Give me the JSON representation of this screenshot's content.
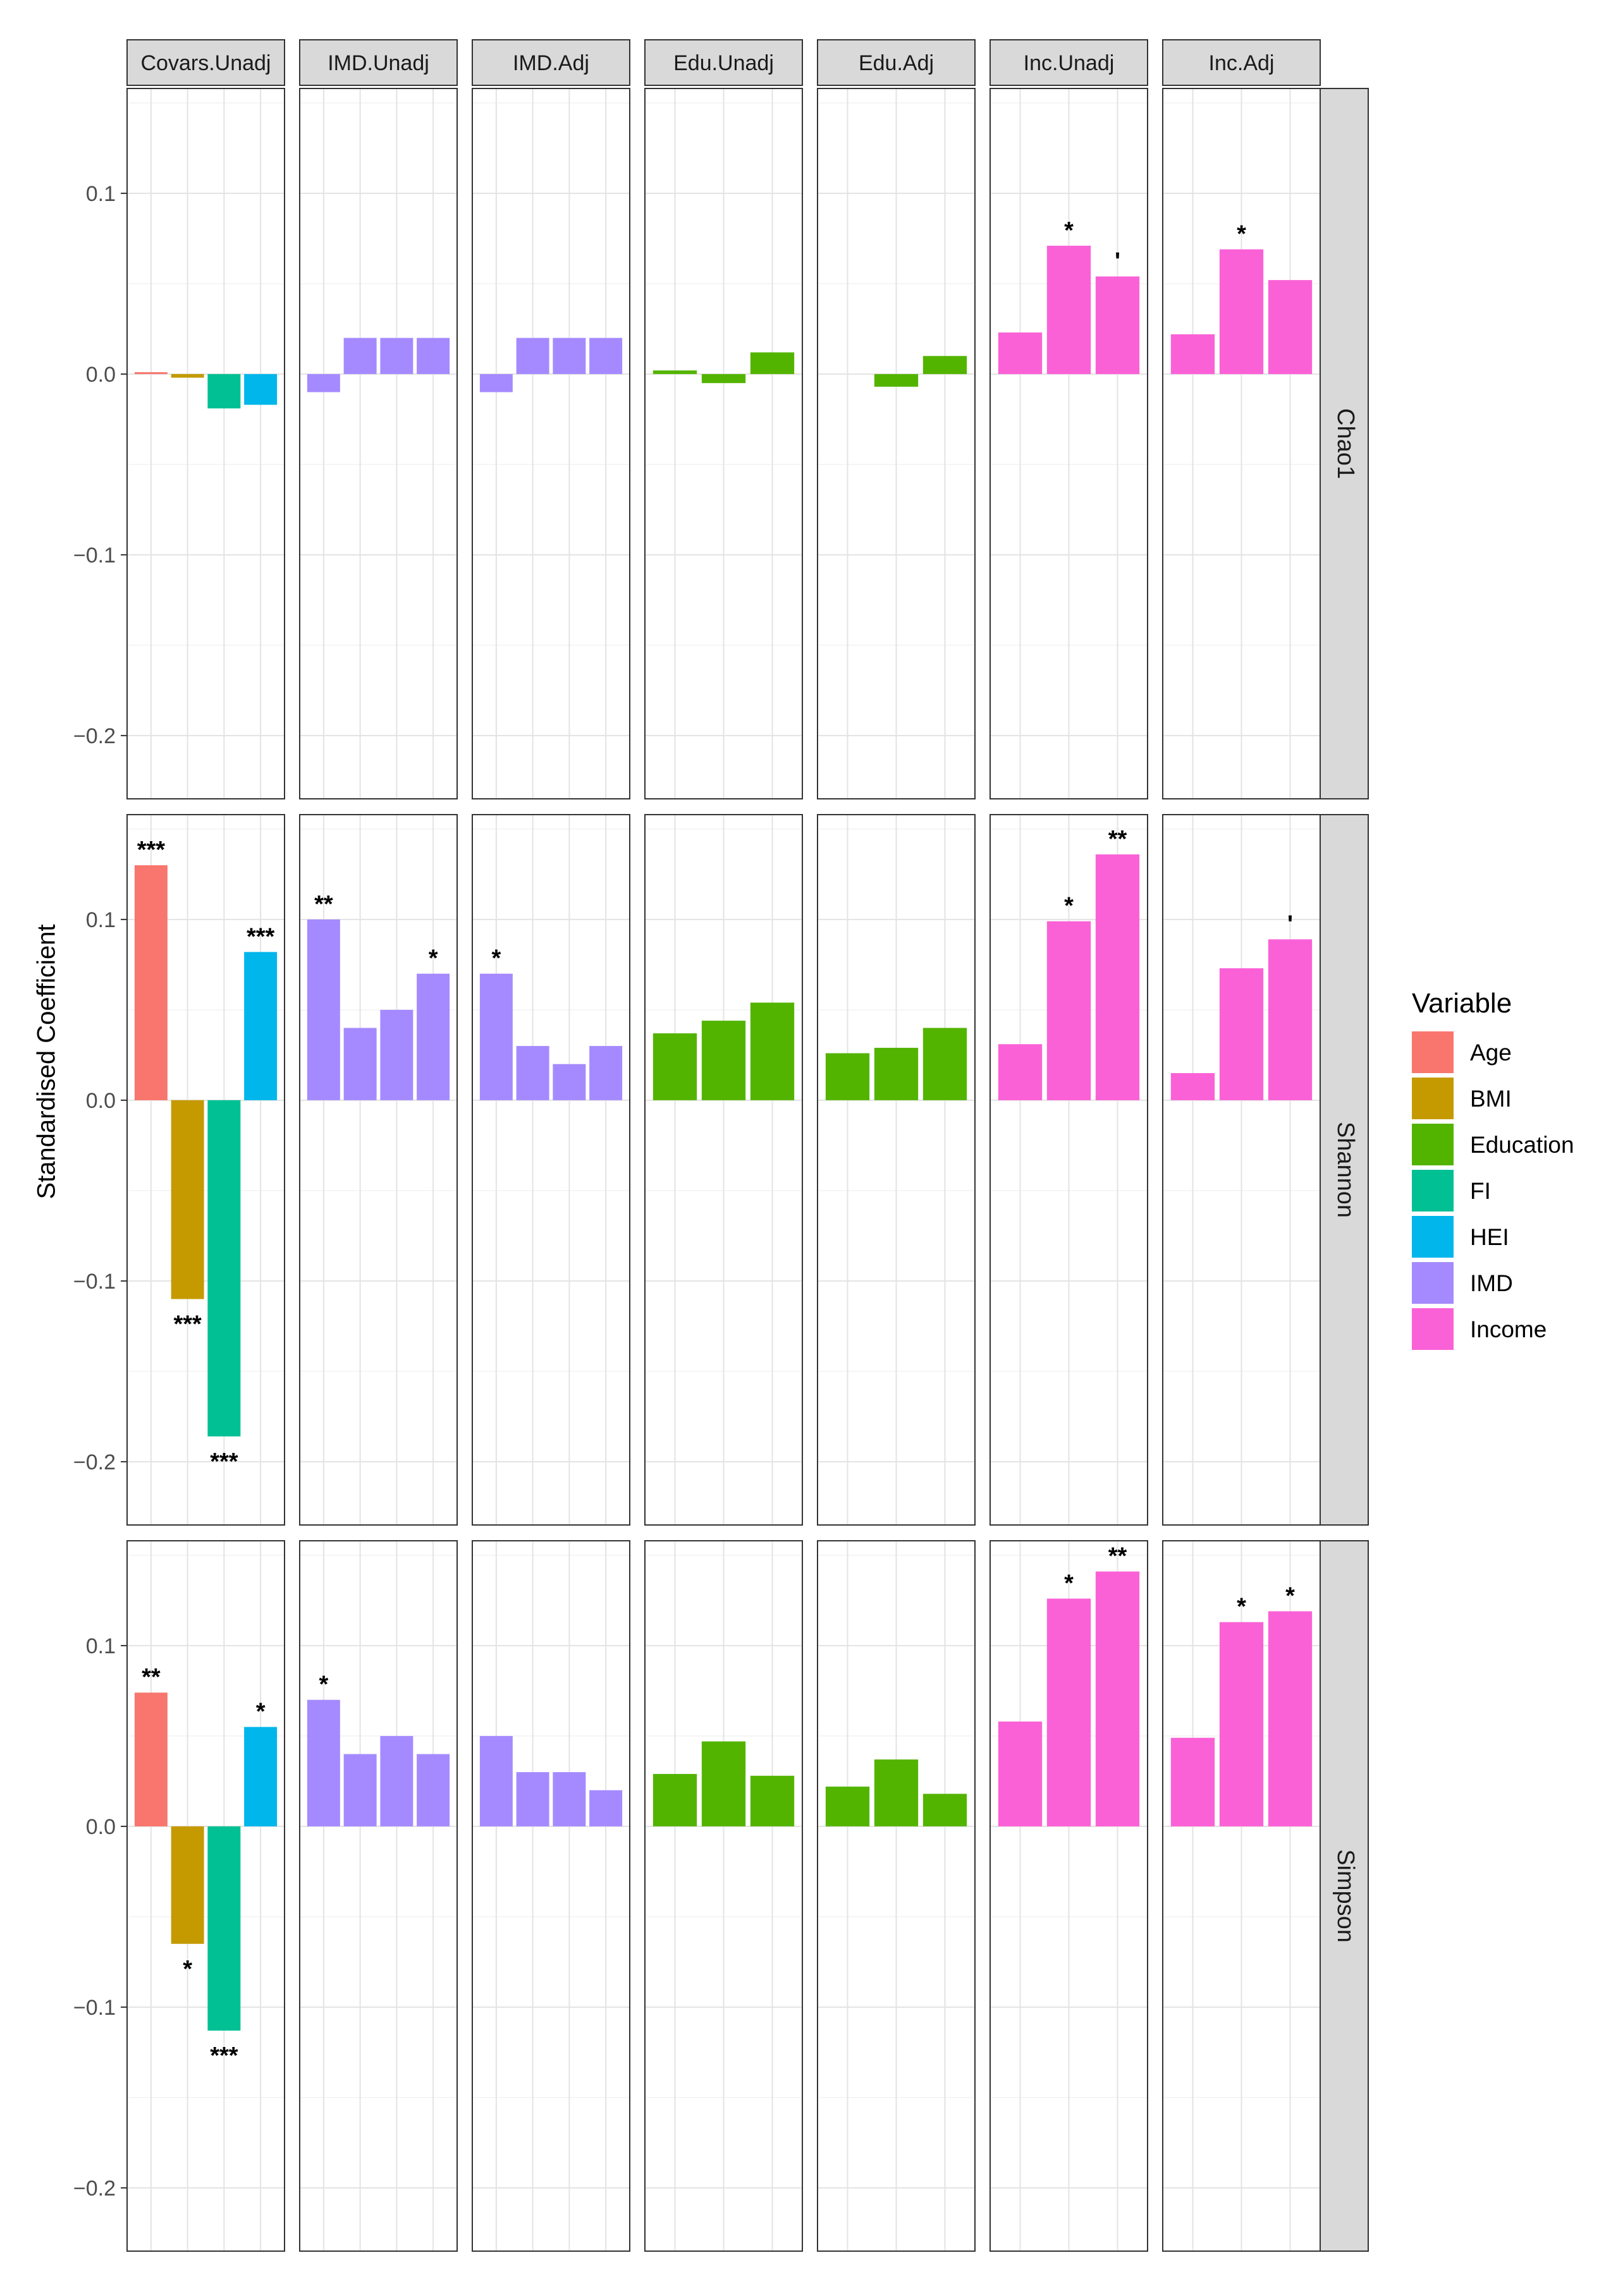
{
  "chart_data": {
    "type": "bar",
    "ylabel": "Standardised Coefficient",
    "xlabel": "",
    "ylim": [
      -0.235,
      0.158
    ],
    "yticks": [
      0.1,
      0.0,
      -0.1,
      -0.2
    ],
    "ytick_labels": [
      "0.1",
      "0.0",
      "−0.1",
      "−0.2"
    ],
    "grid": true,
    "legend_position": "right",
    "columns": [
      "Covars.Unadj",
      "IMD.Unadj",
      "IMD.Adj",
      "Edu.Unadj",
      "Edu.Adj",
      "Inc.Unadj",
      "Inc.Adj"
    ],
    "rows": [
      "Chao1",
      "Shannon",
      "Simpson"
    ],
    "legend": {
      "title": "Variable",
      "items": [
        {
          "name": "Age",
          "color": "#F8766D"
        },
        {
          "name": "BMI",
          "color": "#C49A00"
        },
        {
          "name": "Education",
          "color": "#53B400"
        },
        {
          "name": "FI",
          "color": "#00C094"
        },
        {
          "name": "HEI",
          "color": "#00B6EB"
        },
        {
          "name": "IMD",
          "color": "#A58AFF"
        },
        {
          "name": "Income",
          "color": "#FB61D7"
        }
      ]
    },
    "panels": [
      [
        {
          "variables": [
            "Age",
            "BMI",
            "FI",
            "HEI"
          ],
          "values": [
            0.0005,
            -0.002,
            -0.019,
            -0.017
          ],
          "sig": [
            "",
            "",
            "",
            ""
          ]
        },
        {
          "variables": [
            "IMD",
            "IMD",
            "IMD",
            "IMD"
          ],
          "values": [
            -0.01,
            0.02,
            0.02,
            0.02
          ],
          "sig": [
            "",
            "",
            "",
            ""
          ]
        },
        {
          "variables": [
            "IMD",
            "IMD",
            "IMD",
            "IMD"
          ],
          "values": [
            -0.01,
            0.02,
            0.02,
            0.02
          ],
          "sig": [
            "",
            "",
            "",
            ""
          ]
        },
        {
          "variables": [
            "Education",
            "Education",
            "Education"
          ],
          "values": [
            0.002,
            -0.005,
            0.012
          ],
          "sig": [
            "",
            "",
            ""
          ]
        },
        {
          "variables": [
            "Education",
            "Education",
            "Education"
          ],
          "values": [
            0.0,
            -0.007,
            0.01
          ],
          "sig": [
            "",
            "",
            ""
          ]
        },
        {
          "variables": [
            "Income",
            "Income",
            "Income"
          ],
          "values": [
            0.023,
            0.071,
            0.054
          ],
          "sig": [
            "",
            "*",
            "'"
          ]
        },
        {
          "variables": [
            "Income",
            "Income",
            "Income"
          ],
          "values": [
            0.022,
            0.069,
            0.052
          ],
          "sig": [
            "",
            "*",
            ""
          ]
        }
      ],
      [
        {
          "variables": [
            "Age",
            "BMI",
            "FI",
            "HEI"
          ],
          "values": [
            0.13,
            -0.11,
            -0.186,
            0.082
          ],
          "sig": [
            "***",
            "***",
            "***",
            "***"
          ]
        },
        {
          "variables": [
            "IMD",
            "IMD",
            "IMD",
            "IMD"
          ],
          "values": [
            0.1,
            0.04,
            0.05,
            0.07
          ],
          "sig": [
            "**",
            "",
            "",
            "*"
          ]
        },
        {
          "variables": [
            "IMD",
            "IMD",
            "IMD",
            "IMD"
          ],
          "values": [
            0.07,
            0.03,
            0.02,
            0.03
          ],
          "sig": [
            "*",
            "",
            "",
            ""
          ]
        },
        {
          "variables": [
            "Education",
            "Education",
            "Education"
          ],
          "values": [
            0.037,
            0.044,
            0.054
          ],
          "sig": [
            "",
            "",
            ""
          ]
        },
        {
          "variables": [
            "Education",
            "Education",
            "Education"
          ],
          "values": [
            0.026,
            0.029,
            0.04
          ],
          "sig": [
            "",
            "",
            ""
          ]
        },
        {
          "variables": [
            "Income",
            "Income",
            "Income"
          ],
          "values": [
            0.031,
            0.099,
            0.136
          ],
          "sig": [
            "",
            "*",
            "**"
          ]
        },
        {
          "variables": [
            "Income",
            "Income",
            "Income"
          ],
          "values": [
            0.015,
            0.073,
            0.089
          ],
          "sig": [
            "",
            "",
            "'"
          ]
        }
      ],
      [
        {
          "variables": [
            "Age",
            "BMI",
            "FI",
            "HEI"
          ],
          "values": [
            0.074,
            -0.065,
            -0.113,
            0.055
          ],
          "sig": [
            "**",
            "*",
            "***",
            "*"
          ]
        },
        {
          "variables": [
            "IMD",
            "IMD",
            "IMD",
            "IMD"
          ],
          "values": [
            0.07,
            0.04,
            0.05,
            0.04
          ],
          "sig": [
            "*",
            "",
            "",
            ""
          ]
        },
        {
          "variables": [
            "IMD",
            "IMD",
            "IMD",
            "IMD"
          ],
          "values": [
            0.05,
            0.03,
            0.03,
            0.02
          ],
          "sig": [
            "",
            "",
            "",
            ""
          ]
        },
        {
          "variables": [
            "Education",
            "Education",
            "Education"
          ],
          "values": [
            0.029,
            0.047,
            0.028
          ],
          "sig": [
            "",
            "",
            ""
          ]
        },
        {
          "variables": [
            "Education",
            "Education",
            "Education"
          ],
          "values": [
            0.022,
            0.037,
            0.018
          ],
          "sig": [
            "",
            "",
            ""
          ]
        },
        {
          "variables": [
            "Income",
            "Income",
            "Income"
          ],
          "values": [
            0.058,
            0.126,
            0.141
          ],
          "sig": [
            "",
            "*",
            "**"
          ]
        },
        {
          "variables": [
            "Income",
            "Income",
            "Income"
          ],
          "values": [
            0.049,
            0.113,
            0.119
          ],
          "sig": [
            "",
            "*",
            "*"
          ]
        }
      ]
    ]
  }
}
